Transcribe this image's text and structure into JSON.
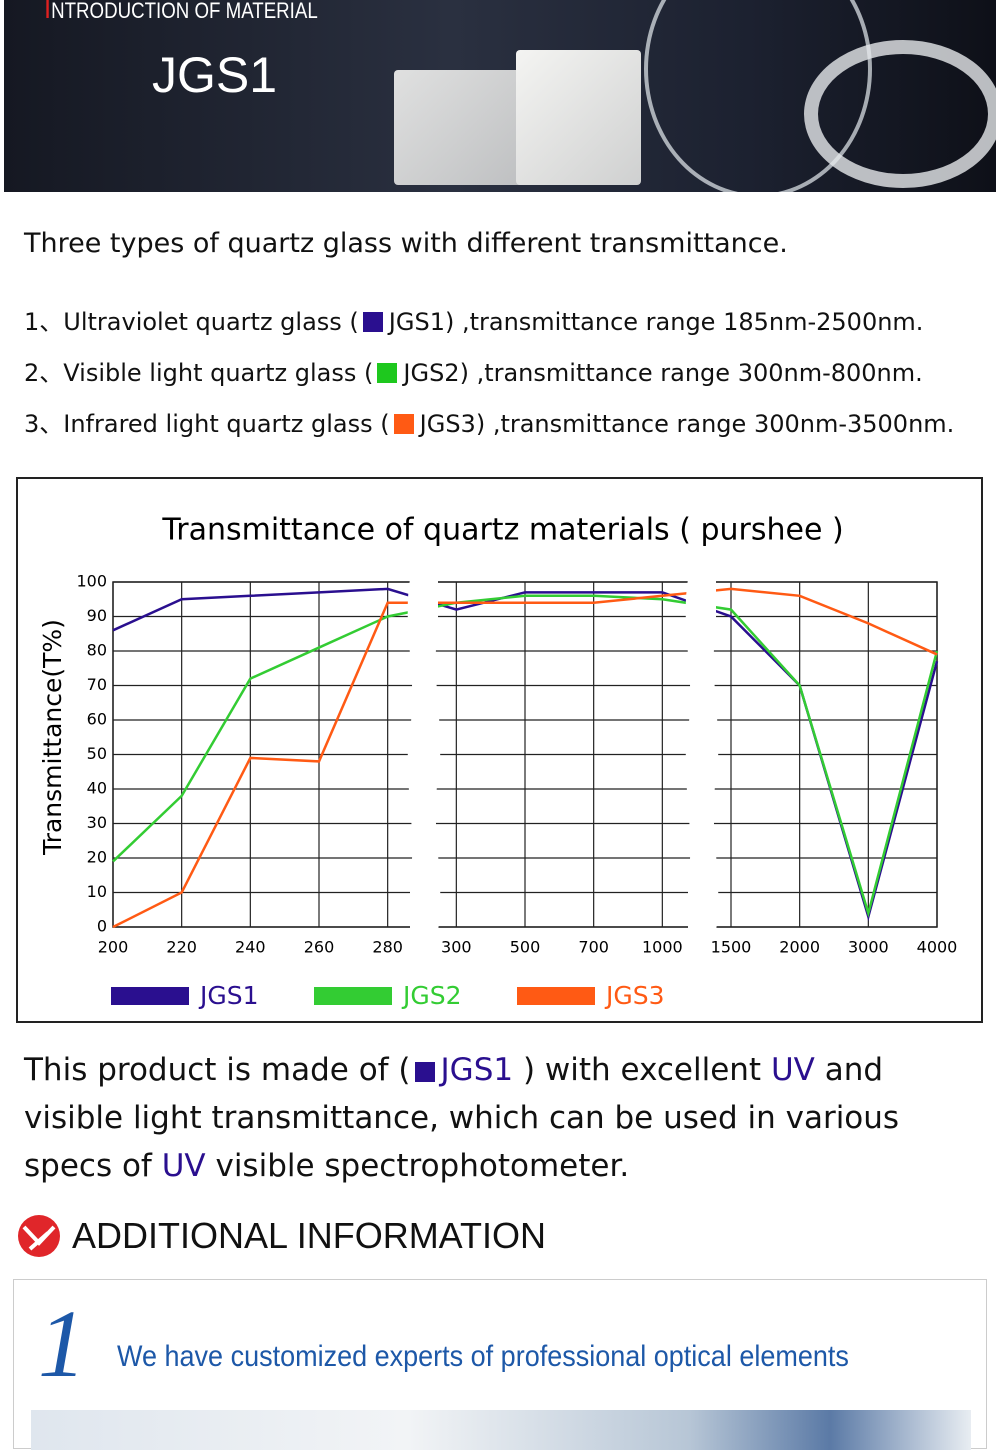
{
  "banner": {
    "title": "INTRODUCTION OF MATERIAL",
    "subtitle": "JGS1"
  },
  "intro": {
    "heading": "Three types of quartz glass with different transmittance.",
    "items": [
      {
        "before": "1、Ultraviolet quartz glass (",
        "label": "JGS1",
        "after": ") ,transmittance range 185nm-2500nm.",
        "color": "#2a0f8f"
      },
      {
        "before": "2、Visible light quartz glass (",
        "label": "JGS2",
        "after": ") ,transmittance range 300nm-800nm.",
        "color": "#1ec81e"
      },
      {
        "before": "3、Infrared light quartz glass (",
        "label": "JGS3",
        "after": ") ,transmittance range 300nm-3500nm.",
        "color": "#ff5a14"
      }
    ]
  },
  "chart_data": {
    "type": "line",
    "title": "Transmittance of quartz materials ( purshee )",
    "y_label": "Transmittance(T%)",
    "categories": [
      "200",
      "220",
      "240",
      "260",
      "280",
      "300",
      "500",
      "700",
      "1000",
      "1500",
      "2000",
      "3000",
      "4000"
    ],
    "series": [
      {
        "name": "JGS1",
        "color": "#2a0f8f",
        "values": [
          86,
          95,
          96,
          97,
          98,
          92,
          97,
          97,
          97,
          90,
          70,
          3,
          77
        ]
      },
      {
        "name": "JGS2",
        "color": "#33cc33",
        "values": [
          19,
          38,
          72,
          81,
          90,
          94,
          96,
          96,
          95,
          92,
          70,
          4,
          80
        ]
      },
      {
        "name": "JGS3",
        "color": "#ff5a14",
        "values": [
          0,
          10,
          49,
          48,
          94,
          94,
          94,
          94,
          96,
          98,
          96,
          88,
          79
        ]
      }
    ],
    "ylim": [
      0,
      100
    ],
    "yticks": [
      0,
      10,
      20,
      30,
      40,
      50,
      60,
      70,
      80,
      90,
      100
    ],
    "grid": true
  },
  "description": {
    "parts": [
      "This product is made of (",
      "JGS1",
      ") with excellent",
      "UV",
      "and visible light transmittance, which can be used in various specs of",
      "UV",
      "visible spectrophotometer."
    ]
  },
  "additional": {
    "heading": "ADDITIONAL INFORMATION",
    "number": "1",
    "text": "We have customized experts of professional optical elements"
  }
}
